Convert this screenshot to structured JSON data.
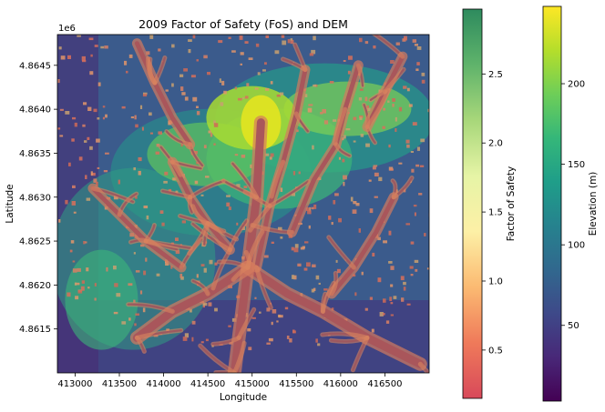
{
  "chart_data": [
    {
      "type": "heatmap",
      "title": "2009 Factor of Safety (FoS) and DEM",
      "xlabel": "Longitude",
      "ylabel": "Latitude",
      "y_offset_label": "1e6",
      "xlim": [
        412800,
        417000
      ],
      "ylim": [
        4.861,
        4.86485
      ],
      "xticks": [
        413000,
        413500,
        414000,
        414500,
        415000,
        415500,
        416000,
        416500
      ],
      "yticks": [
        4.8615,
        4.862,
        4.8625,
        4.863,
        4.8635,
        4.864,
        4.8645
      ],
      "ytick_labels": [
        "4.8615",
        "4.8620",
        "4.8625",
        "4.8630",
        "4.8635",
        "4.8640",
        "4.8645"
      ],
      "layers": [
        {
          "name": "DEM",
          "colormap": "viridis"
        },
        {
          "name": "Factor of Safety",
          "colormap": "RdYlGn (spectral, semi-transparent)"
        }
      ],
      "features": {
        "ridge_high_point": [
          415100,
          4.86385
        ],
        "valley_channels": [
          [
            [
              415100,
              4.86385
            ],
            [
              415050,
              4.863
            ],
            [
              414950,
              4.8622
            ],
            [
              414850,
              4.8614
            ],
            [
              414800,
              4.861
            ]
          ],
          [
            [
              414950,
              4.8622
            ],
            [
              414500,
              4.8619
            ],
            [
              414100,
              4.8617
            ],
            [
              413700,
              4.8614
            ]
          ],
          [
            [
              414950,
              4.8622
            ],
            [
              415400,
              4.8619
            ],
            [
              415800,
              4.8617
            ],
            [
              416300,
              4.8614
            ],
            [
              416900,
              4.8611
            ]
          ],
          [
            [
              415600,
              4.86445
            ],
            [
              415500,
              4.86395
            ],
            [
              415350,
              4.8634
            ],
            [
              415200,
              4.8629
            ],
            [
              415050,
              4.8622
            ]
          ],
          [
            [
              416200,
              4.8645
            ],
            [
              416050,
              4.864
            ],
            [
              415950,
              4.8636
            ],
            [
              415700,
              4.8632
            ],
            [
              415450,
              4.8626
            ]
          ],
          [
            [
              414100,
              4.8634
            ],
            [
              414300,
              4.863
            ],
            [
              414500,
              4.8627
            ],
            [
              414750,
              4.8624
            ]
          ],
          [
            [
              413200,
              4.8631
            ],
            [
              413500,
              4.8628
            ],
            [
              413800,
              4.8625
            ],
            [
              414200,
              4.8622
            ]
          ],
          [
            [
              416600,
              4.863
            ],
            [
              416400,
              4.8626
            ],
            [
              416150,
              4.8622
            ],
            [
              415900,
              4.8619
            ]
          ],
          [
            [
              413700,
              4.86475
            ],
            [
              413900,
              4.8643
            ],
            [
              414100,
              4.8639
            ],
            [
              414300,
              4.8636
            ]
          ],
          [
            [
              416700,
              4.8646
            ],
            [
              416500,
              4.8642
            ],
            [
              416300,
              4.8638
            ]
          ]
        ]
      }
    },
    {
      "type": "colorbar",
      "label": "Factor of Safety",
      "colormap": "RdYlGn",
      "range": [
        0.15,
        2.97
      ],
      "ticks": [
        0.5,
        1.0,
        1.5,
        2.0,
        2.5
      ],
      "tick_labels": [
        "0.5",
        "1.0",
        "1.5",
        "2.0",
        "2.5"
      ],
      "colors": [
        "#d8495a",
        "#ef7a5a",
        "#fbba72",
        "#fdf0a6",
        "#e6f4a6",
        "#a8d77a",
        "#5fb36b",
        "#2e8b5e"
      ]
    },
    {
      "type": "colorbar",
      "label": "Elevation (m)",
      "colormap": "viridis",
      "range": [
        3,
        248
      ],
      "ticks": [
        50,
        100,
        150,
        200
      ],
      "tick_labels": [
        "50",
        "100",
        "150",
        "200"
      ],
      "colors": [
        "#440154",
        "#482878",
        "#3e4989",
        "#31688e",
        "#26828e",
        "#1f9e89",
        "#35b779",
        "#6ece58",
        "#b5de2b",
        "#fde725"
      ]
    }
  ]
}
